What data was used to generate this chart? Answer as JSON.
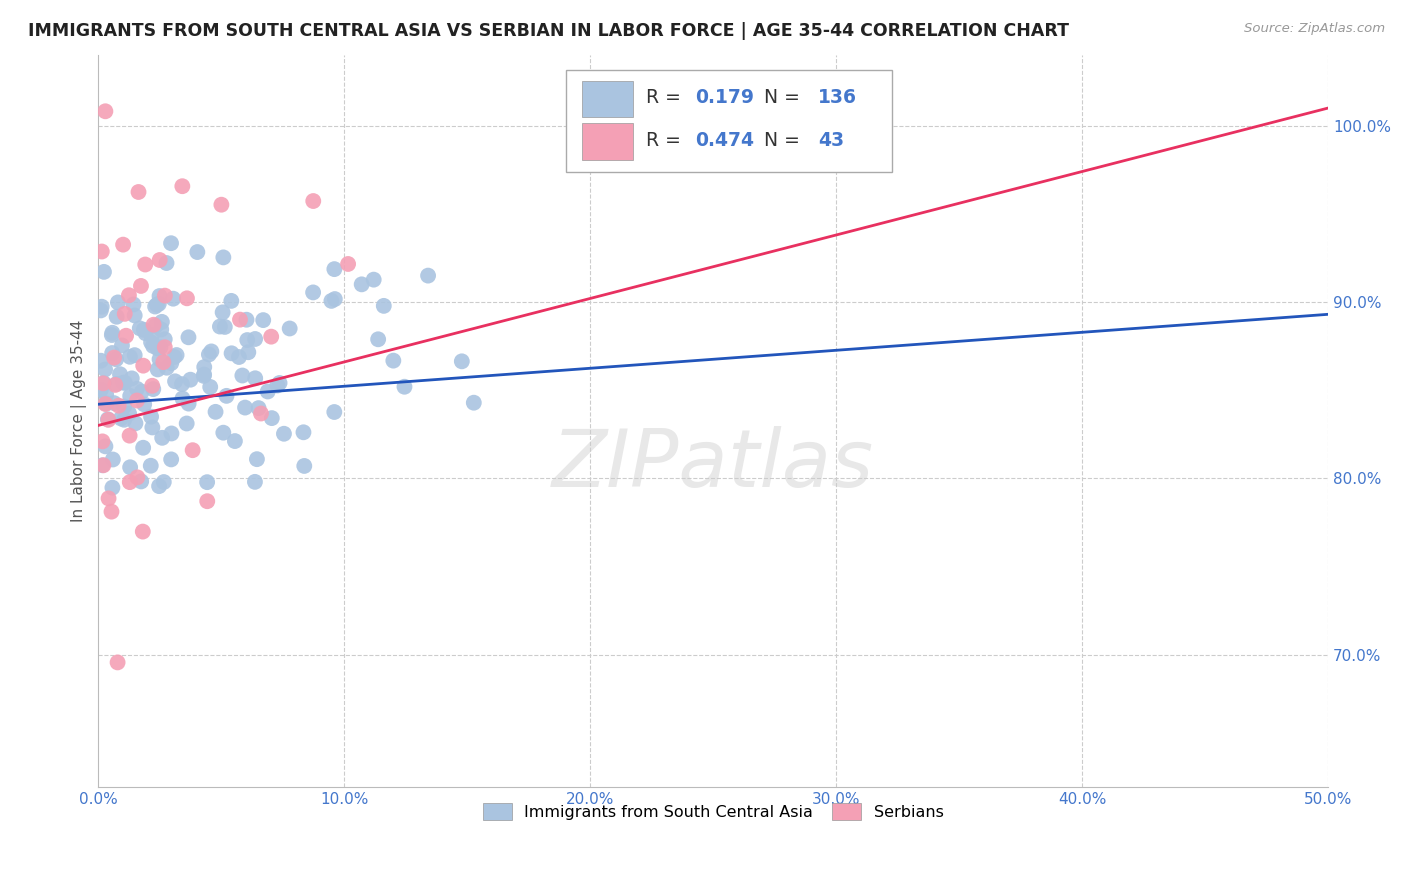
{
  "title": "IMMIGRANTS FROM SOUTH CENTRAL ASIA VS SERBIAN IN LABOR FORCE | AGE 35-44 CORRELATION CHART",
  "source": "Source: ZipAtlas.com",
  "ylabel_label": "In Labor Force | Age 35-44",
  "x_min": 0.0,
  "x_max": 0.5,
  "y_min": 0.625,
  "y_max": 1.04,
  "y_ticks": [
    0.7,
    0.8,
    0.9,
    1.0
  ],
  "y_tick_labels": [
    "70.0%",
    "80.0%",
    "90.0%",
    "100.0%"
  ],
  "x_ticks": [
    0.0,
    0.1,
    0.2,
    0.3,
    0.4,
    0.5
  ],
  "x_tick_labels": [
    "0.0%",
    "10.0%",
    "20.0%",
    "30.0%",
    "40.0%",
    "50.0%"
  ],
  "blue_R": 0.179,
  "blue_N": 136,
  "pink_R": 0.474,
  "pink_N": 43,
  "blue_color": "#aac4e0",
  "pink_color": "#f4a0b5",
  "blue_line_color": "#2255bb",
  "pink_line_color": "#e83060",
  "legend_blue_label": "Immigrants from South Central Asia",
  "legend_pink_label": "Serbians",
  "watermark": "ZIPatlas",
  "grid_color": "#cccccc",
  "background_color": "#ffffff",
  "tick_color": "#4477cc",
  "title_color": "#222222",
  "source_color": "#999999",
  "ylabel_color": "#555555"
}
